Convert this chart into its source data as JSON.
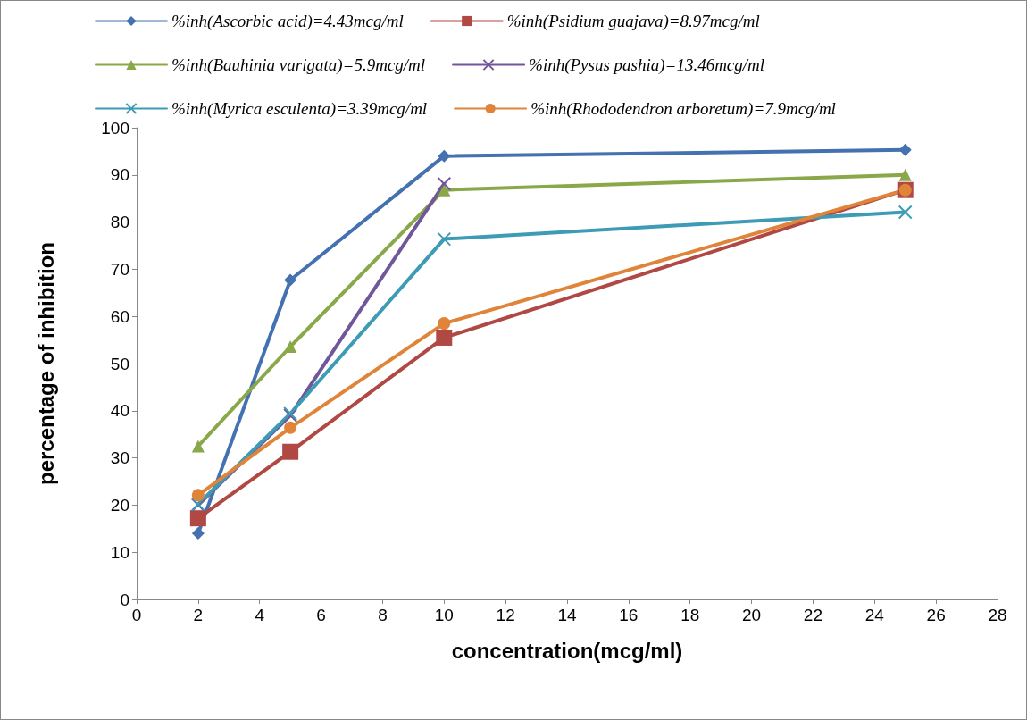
{
  "chart_data": {
    "type": "line",
    "xlabel": "concentration(mcg/ml)",
    "ylabel": "percentage of inhibition",
    "x": [
      2,
      5,
      10,
      25
    ],
    "xlim": [
      0,
      28
    ],
    "xticks": [
      0,
      2,
      4,
      6,
      8,
      10,
      12,
      14,
      16,
      18,
      20,
      22,
      24,
      26,
      28
    ],
    "ylim": [
      0,
      100
    ],
    "yticks": [
      0,
      10,
      20,
      30,
      40,
      50,
      60,
      70,
      80,
      90,
      100
    ],
    "grid": false,
    "legend": "top",
    "line_style": "solid",
    "series": [
      {
        "name": "%inh(Ascorbic acid)=4.43mcg/ml",
        "color": "#4472b0",
        "marker": "diamond",
        "values": [
          14.0,
          67.7,
          94.0,
          95.3
        ]
      },
      {
        "name": "%inh(Psidium guajava)=8.97mcg/ml",
        "color": "#b04844",
        "marker": "square",
        "values": [
          17.2,
          31.3,
          55.5,
          86.8
        ]
      },
      {
        "name": "%inh(Bauhinia varigata)=5.9mcg/ml",
        "color": "#8aa84a",
        "marker": "triangle",
        "values": [
          32.5,
          53.6,
          86.8,
          90.0
        ]
      },
      {
        "name": "%inh(Pysus pashia)=13.46mcg/ml",
        "color": "#71579a",
        "marker": "cross",
        "values": [
          20,
          39,
          88.1,
          null
        ]
      },
      {
        "name": "%inh(Myrica esculenta)=3.39mcg/ml",
        "color": "#3e9bb5",
        "marker": "cross",
        "values": [
          20.2,
          39.4,
          76.4,
          82.1
        ]
      },
      {
        "name": "%inh(Rhododendron arboretum)=7.9mcg/ml",
        "color": "#e0843a",
        "marker": "circle",
        "values": [
          22.1,
          36.4,
          58.5,
          86.8
        ]
      }
    ]
  }
}
